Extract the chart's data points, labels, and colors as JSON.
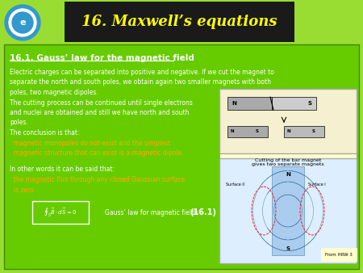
{
  "title": "16. Maxwell’s equations",
  "title_bg": "#1a1a1a",
  "title_color": "#ffff00",
  "slide_bg": "#66cc00",
  "outer_bg": "#99dd33",
  "heading": "16.1. Gauss’ law for the magnetic field",
  "heading_color": "#ffffff",
  "heading_underline": true,
  "body_color": "#ffffff",
  "highlight_color": "#ffaa00",
  "body_text": "Electric charges can be separated into positive and negative. If we cut the magnet to\nseparate the north and south poles, we obtain again two smaller magnets with both\npoles, two magnetic dipoles.\nThe cutting process can be continued until single electrons\nand nuclei are obtained and still we have north and south\npoles.\nThe conclusion is that:",
  "highlight_text1": "  magnetic monopoles do not exist and the simplest\n  magnetic structure that can exist is a magnetic dipole.",
  "body_text2": "\nIn other words it can be said that:",
  "highlight_text2": "  the magnetic flux through any closed Gaussian surface\n  is zero",
  "formula_label": "Gauss’ law for magnetic fields",
  "formula_eq": "(16.1)",
  "caption1": "Cutting of the bar magnet\ngives two separate magnets",
  "caption2": "From HRW 3",
  "logo_color": "#3399ff"
}
